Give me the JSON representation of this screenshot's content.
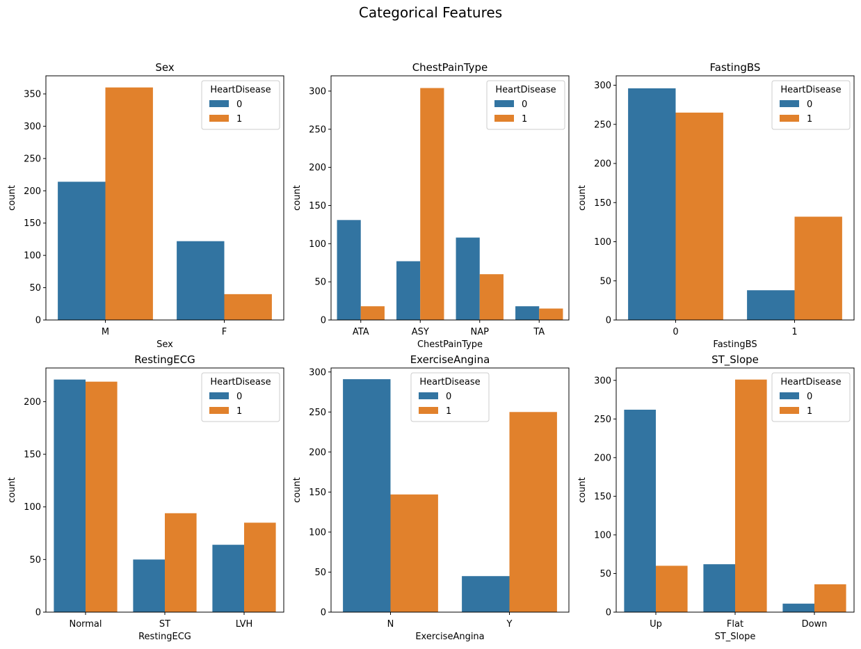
{
  "figure": {
    "title": "Categorical Features"
  },
  "colors": {
    "class_0": "#3274a1",
    "class_1": "#e1812c",
    "axis": "#000000",
    "legend_border": "#cccccc"
  },
  "chart_data": [
    {
      "type": "bar",
      "title": "Sex",
      "xlabel": "Sex",
      "ylabel": "count",
      "categories": [
        "M",
        "F"
      ],
      "ylim": [
        0,
        378
      ],
      "yticks": [
        0,
        50,
        100,
        150,
        200,
        250,
        300,
        350
      ],
      "legend": {
        "title": "HeartDisease",
        "placement": "top-right"
      },
      "series": [
        {
          "name": "0",
          "values": [
            214,
            122
          ]
        },
        {
          "name": "1",
          "values": [
            360,
            40
          ]
        }
      ]
    },
    {
      "type": "bar",
      "title": "ChestPainType",
      "xlabel": "ChestPainType",
      "ylabel": "count",
      "categories": [
        "ATA",
        "ASY",
        "NAP",
        "TA"
      ],
      "ylim": [
        0,
        320
      ],
      "yticks": [
        0,
        50,
        100,
        150,
        200,
        250,
        300
      ],
      "legend": {
        "title": "HeartDisease",
        "placement": "top-right"
      },
      "series": [
        {
          "name": "0",
          "values": [
            131,
            77,
            108,
            18
          ]
        },
        {
          "name": "1",
          "values": [
            18,
            304,
            60,
            15
          ]
        }
      ]
    },
    {
      "type": "bar",
      "title": "FastingBS",
      "xlabel": "FastingBS",
      "ylabel": "count",
      "categories": [
        "0",
        "1"
      ],
      "ylim": [
        0,
        312
      ],
      "yticks": [
        0,
        50,
        100,
        150,
        200,
        250,
        300
      ],
      "legend": {
        "title": "HeartDisease",
        "placement": "top-right"
      },
      "series": [
        {
          "name": "0",
          "values": [
            296,
            38
          ]
        },
        {
          "name": "1",
          "values": [
            265,
            132
          ]
        }
      ]
    },
    {
      "type": "bar",
      "title": "RestingECG",
      "xlabel": "RestingECG",
      "ylabel": "count",
      "categories": [
        "Normal",
        "ST",
        "LVH"
      ],
      "ylim": [
        0,
        232
      ],
      "yticks": [
        0,
        50,
        100,
        150,
        200
      ],
      "legend": {
        "title": "HeartDisease",
        "placement": "top-right"
      },
      "series": [
        {
          "name": "0",
          "values": [
            221,
            50,
            64
          ]
        },
        {
          "name": "1",
          "values": [
            219,
            94,
            85
          ]
        }
      ]
    },
    {
      "type": "bar",
      "title": "ExerciseAngina",
      "xlabel": "ExerciseAngina",
      "ylabel": "count",
      "categories": [
        "N",
        "Y"
      ],
      "ylim": [
        0,
        305
      ],
      "yticks": [
        0,
        50,
        100,
        150,
        200,
        250,
        300
      ],
      "legend": {
        "title": "HeartDisease",
        "placement": "top-center"
      },
      "series": [
        {
          "name": "0",
          "values": [
            291,
            45
          ]
        },
        {
          "name": "1",
          "values": [
            147,
            250
          ]
        }
      ]
    },
    {
      "type": "bar",
      "title": "ST_Slope",
      "xlabel": "ST_Slope",
      "ylabel": "count",
      "categories": [
        "Up",
        "Flat",
        "Down"
      ],
      "ylim": [
        0,
        316
      ],
      "yticks": [
        0,
        50,
        100,
        150,
        200,
        250,
        300
      ],
      "legend": {
        "title": "HeartDisease",
        "placement": "top-right"
      },
      "series": [
        {
          "name": "0",
          "values": [
            262,
            62,
            11
          ]
        },
        {
          "name": "1",
          "values": [
            60,
            301,
            36
          ]
        }
      ]
    }
  ]
}
